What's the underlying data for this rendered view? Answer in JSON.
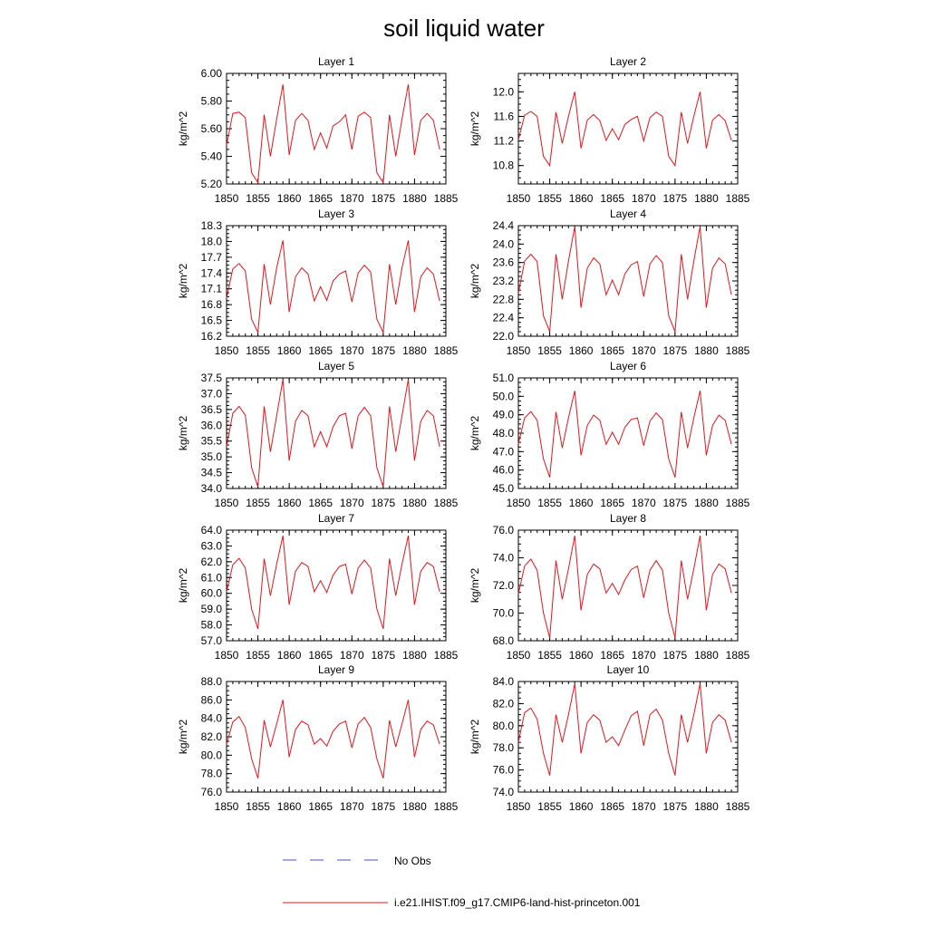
{
  "figure_title": "soil liquid water",
  "colors": {
    "model": "#e8141b",
    "obs": "#4a4fc0",
    "axis": "#000000"
  },
  "legend": {
    "obs_label": "No Obs",
    "model_label": "i.e21.IHIST.f09_g17.CMIP6-land-hist-princeton.001"
  },
  "chart_data": [
    {
      "type": "line",
      "title": "Layer 1",
      "ylabel": "kg/m^2",
      "xlim": [
        1850,
        1885
      ],
      "ylim": [
        5.2,
        6.0
      ],
      "x_ticks": [
        "1850",
        "1855",
        "1860",
        "1865",
        "1870",
        "1875",
        "1880",
        "1885"
      ],
      "y_ticks": [
        "5.20",
        "5.40",
        "5.60",
        "5.80",
        "6.00"
      ],
      "series": [
        {
          "x": [
            1850,
            1851,
            1852,
            1853,
            1854,
            1855,
            1856,
            1857,
            1858,
            1859,
            1860,
            1861,
            1862,
            1863,
            1864,
            1865,
            1866,
            1867,
            1868,
            1869,
            1870,
            1871,
            1872,
            1873,
            1874,
            1875,
            1876,
            1877,
            1878,
            1879,
            1880,
            1881,
            1882,
            1883,
            1884
          ],
          "y": [
            5.48,
            5.71,
            5.72,
            5.68,
            5.28,
            5.21,
            5.7,
            5.4,
            5.67,
            5.92,
            5.41,
            5.66,
            5.71,
            5.66,
            5.45,
            5.57,
            5.46,
            5.62,
            5.65,
            5.7,
            5.45,
            5.69,
            5.72,
            5.68,
            5.28,
            5.21,
            5.7,
            5.4,
            5.67,
            5.92,
            5.41,
            5.66,
            5.71,
            5.66,
            5.45
          ]
        }
      ]
    },
    {
      "type": "line",
      "title": "Layer 2",
      "ylabel": "kg/m^2",
      "xlim": [
        1850,
        1885
      ],
      "ylim": [
        10.5,
        12.3
      ],
      "x_ticks": [
        "1850",
        "1855",
        "1860",
        "1865",
        "1870",
        "1875",
        "1880",
        "1885"
      ],
      "y_ticks": [
        "10.8",
        "11.2",
        "11.6",
        "12.0"
      ],
      "series": [
        {
          "x": [
            1850,
            1851,
            1852,
            1853,
            1854,
            1855,
            1856,
            1857,
            1858,
            1859,
            1860,
            1861,
            1862,
            1863,
            1864,
            1865,
            1866,
            1867,
            1868,
            1869,
            1870,
            1871,
            1872,
            1873,
            1874,
            1875,
            1876,
            1877,
            1878,
            1879,
            1880,
            1881,
            1882,
            1883,
            1884
          ],
          "y": [
            11.22,
            11.62,
            11.68,
            11.6,
            10.95,
            10.8,
            11.67,
            11.16,
            11.6,
            12.0,
            11.08,
            11.54,
            11.63,
            11.53,
            11.21,
            11.4,
            11.22,
            11.47,
            11.55,
            11.6,
            11.2,
            11.58,
            11.67,
            11.6,
            10.95,
            10.8,
            11.67,
            11.16,
            11.6,
            12.0,
            11.08,
            11.54,
            11.63,
            11.53,
            11.21
          ]
        }
      ]
    },
    {
      "type": "line",
      "title": "Layer 3",
      "ylabel": "kg/m^2",
      "xlim": [
        1850,
        1885
      ],
      "ylim": [
        16.2,
        18.3
      ],
      "x_ticks": [
        "1850",
        "1855",
        "1860",
        "1865",
        "1870",
        "1875",
        "1880",
        "1885"
      ],
      "y_ticks": [
        "16.2",
        "16.5",
        "16.8",
        "17.1",
        "17.4",
        "17.7",
        "18.0",
        "18.3"
      ],
      "series": [
        {
          "x": [
            1850,
            1851,
            1852,
            1853,
            1854,
            1855,
            1856,
            1857,
            1858,
            1859,
            1860,
            1861,
            1862,
            1863,
            1864,
            1865,
            1866,
            1867,
            1868,
            1869,
            1870,
            1871,
            1872,
            1873,
            1874,
            1875,
            1876,
            1877,
            1878,
            1879,
            1880,
            1881,
            1882,
            1883,
            1884
          ],
          "y": [
            16.92,
            17.48,
            17.58,
            17.44,
            16.52,
            16.27,
            17.57,
            16.8,
            17.5,
            18.02,
            16.66,
            17.33,
            17.5,
            17.38,
            16.87,
            17.14,
            16.88,
            17.25,
            17.38,
            17.44,
            16.85,
            17.4,
            17.55,
            17.42,
            16.52,
            16.27,
            17.57,
            16.8,
            17.5,
            18.02,
            16.66,
            17.33,
            17.5,
            17.38,
            16.87
          ]
        }
      ]
    },
    {
      "type": "line",
      "title": "Layer 4",
      "ylabel": "kg/m^2",
      "xlim": [
        1850,
        1885
      ],
      "ylim": [
        22.0,
        24.4
      ],
      "x_ticks": [
        "1850",
        "1855",
        "1860",
        "1865",
        "1870",
        "1875",
        "1880",
        "1885"
      ],
      "y_ticks": [
        "22.0",
        "22.4",
        "22.8",
        "23.2",
        "23.6",
        "24.0",
        "24.4"
      ],
      "series": [
        {
          "x": [
            1850,
            1851,
            1852,
            1853,
            1854,
            1855,
            1856,
            1857,
            1858,
            1859,
            1860,
            1861,
            1862,
            1863,
            1864,
            1865,
            1866,
            1867,
            1868,
            1869,
            1870,
            1871,
            1872,
            1873,
            1874,
            1875,
            1876,
            1877,
            1878,
            1879,
            1880,
            1881,
            1882,
            1883,
            1884
          ],
          "y": [
            22.93,
            23.63,
            23.78,
            23.62,
            22.44,
            22.1,
            23.78,
            22.8,
            23.63,
            24.38,
            22.62,
            23.48,
            23.7,
            23.57,
            22.9,
            23.22,
            22.9,
            23.35,
            23.55,
            23.62,
            22.86,
            23.57,
            23.75,
            23.6,
            22.44,
            22.1,
            23.78,
            22.8,
            23.63,
            24.38,
            22.62,
            23.48,
            23.7,
            23.57,
            22.9
          ]
        }
      ]
    },
    {
      "type": "line",
      "title": "Layer 5",
      "ylabel": "kg/m^2",
      "xlim": [
        1850,
        1885
      ],
      "ylim": [
        34.0,
        37.5
      ],
      "x_ticks": [
        "1850",
        "1855",
        "1860",
        "1865",
        "1870",
        "1875",
        "1880",
        "1885"
      ],
      "y_ticks": [
        "34.0",
        "34.5",
        "35.0",
        "35.5",
        "36.0",
        "36.5",
        "37.0",
        "37.5"
      ],
      "series": [
        {
          "x": [
            1850,
            1851,
            1852,
            1853,
            1854,
            1855,
            1856,
            1857,
            1858,
            1859,
            1860,
            1861,
            1862,
            1863,
            1864,
            1865,
            1866,
            1867,
            1868,
            1869,
            1870,
            1871,
            1872,
            1873,
            1874,
            1875,
            1876,
            1877,
            1878,
            1879,
            1880,
            1881,
            1882,
            1883,
            1884
          ],
          "y": [
            35.32,
            36.38,
            36.6,
            36.32,
            34.65,
            34.05,
            36.6,
            35.16,
            36.3,
            37.45,
            34.88,
            36.13,
            36.47,
            36.3,
            35.32,
            35.8,
            35.32,
            35.95,
            36.3,
            36.38,
            35.26,
            36.3,
            36.57,
            36.3,
            34.65,
            34.05,
            36.6,
            35.16,
            36.3,
            37.45,
            34.88,
            36.13,
            36.47,
            36.3,
            35.32
          ]
        }
      ]
    },
    {
      "type": "line",
      "title": "Layer 6",
      "ylabel": "kg/m^2",
      "xlim": [
        1850,
        1885
      ],
      "ylim": [
        45.0,
        51.0
      ],
      "x_ticks": [
        "1850",
        "1855",
        "1860",
        "1865",
        "1870",
        "1875",
        "1880",
        "1885"
      ],
      "y_ticks": [
        "45.0",
        "46.0",
        "47.0",
        "48.0",
        "49.0",
        "50.0",
        "51.0"
      ],
      "series": [
        {
          "x": [
            1850,
            1851,
            1852,
            1853,
            1854,
            1855,
            1856,
            1857,
            1858,
            1859,
            1860,
            1861,
            1862,
            1863,
            1864,
            1865,
            1866,
            1867,
            1868,
            1869,
            1870,
            1871,
            1872,
            1873,
            1874,
            1875,
            1876,
            1877,
            1878,
            1879,
            1880,
            1881,
            1882,
            1883,
            1884
          ],
          "y": [
            47.42,
            48.83,
            49.17,
            48.7,
            46.6,
            45.6,
            49.15,
            47.2,
            48.83,
            50.3,
            46.8,
            48.43,
            48.98,
            48.7,
            47.4,
            48.05,
            47.4,
            48.32,
            48.75,
            48.83,
            47.32,
            48.66,
            49.1,
            48.74,
            46.6,
            45.6,
            49.15,
            47.2,
            48.83,
            50.3,
            46.8,
            48.43,
            48.98,
            48.7,
            47.4
          ]
        }
      ]
    },
    {
      "type": "line",
      "title": "Layer 7",
      "ylabel": "kg/m^2",
      "xlim": [
        1850,
        1885
      ],
      "ylim": [
        57.0,
        64.0
      ],
      "x_ticks": [
        "1850",
        "1855",
        "1860",
        "1865",
        "1870",
        "1875",
        "1880",
        "1885"
      ],
      "y_ticks": [
        "57.0",
        "58.0",
        "59.0",
        "60.0",
        "61.0",
        "62.0",
        "63.0",
        "64.0"
      ],
      "series": [
        {
          "x": [
            1850,
            1851,
            1852,
            1853,
            1854,
            1855,
            1856,
            1857,
            1858,
            1859,
            1860,
            1861,
            1862,
            1863,
            1864,
            1865,
            1866,
            1867,
            1868,
            1869,
            1870,
            1871,
            1872,
            1873,
            1874,
            1875,
            1876,
            1877,
            1878,
            1879,
            1880,
            1881,
            1882,
            1883,
            1884
          ],
          "y": [
            60.1,
            61.8,
            62.22,
            61.6,
            59.0,
            57.75,
            62.2,
            59.85,
            61.85,
            63.65,
            59.28,
            61.4,
            61.95,
            61.7,
            60.1,
            60.8,
            60.05,
            61.15,
            61.7,
            61.85,
            59.95,
            61.6,
            62.1,
            61.6,
            59.0,
            57.75,
            62.2,
            59.85,
            61.85,
            63.65,
            59.28,
            61.4,
            61.95,
            61.7,
            60.1
          ]
        }
      ]
    },
    {
      "type": "line",
      "title": "Layer 8",
      "ylabel": "kg/m^2",
      "xlim": [
        1850,
        1885
      ],
      "ylim": [
        68.0,
        76.0
      ],
      "x_ticks": [
        "1850",
        "1855",
        "1860",
        "1865",
        "1870",
        "1875",
        "1880",
        "1885"
      ],
      "y_ticks": [
        "68.0",
        "70.0",
        "72.0",
        "74.0",
        "76.0"
      ],
      "series": [
        {
          "x": [
            1850,
            1851,
            1852,
            1853,
            1854,
            1855,
            1856,
            1857,
            1858,
            1859,
            1860,
            1861,
            1862,
            1863,
            1864,
            1865,
            1866,
            1867,
            1868,
            1869,
            1870,
            1871,
            1872,
            1873,
            1874,
            1875,
            1876,
            1877,
            1878,
            1879,
            1880,
            1881,
            1882,
            1883,
            1884
          ],
          "y": [
            71.4,
            73.4,
            73.9,
            73.1,
            70.0,
            68.2,
            73.8,
            71.0,
            73.2,
            75.6,
            70.2,
            72.8,
            73.55,
            73.2,
            71.45,
            72.15,
            71.35,
            72.4,
            73.15,
            73.4,
            71.1,
            73.1,
            73.8,
            73.1,
            70.0,
            68.2,
            73.8,
            71.0,
            73.2,
            75.6,
            70.2,
            72.8,
            73.55,
            73.2,
            71.45
          ]
        }
      ]
    },
    {
      "type": "line",
      "title": "Layer 9",
      "ylabel": "kg/m^2",
      "xlim": [
        1850,
        1885
      ],
      "ylim": [
        76.0,
        88.0
      ],
      "x_ticks": [
        "1850",
        "1855",
        "1860",
        "1865",
        "1870",
        "1875",
        "1880",
        "1885"
      ],
      "y_ticks": [
        "76.0",
        "78.0",
        "80.0",
        "82.0",
        "84.0",
        "86.0",
        "88.0"
      ],
      "series": [
        {
          "x": [
            1850,
            1851,
            1852,
            1853,
            1854,
            1855,
            1856,
            1857,
            1858,
            1859,
            1860,
            1861,
            1862,
            1863,
            1864,
            1865,
            1866,
            1867,
            1868,
            1869,
            1870,
            1871,
            1872,
            1873,
            1874,
            1875,
            1876,
            1877,
            1878,
            1879,
            1880,
            1881,
            1882,
            1883,
            1884
          ],
          "y": [
            81.2,
            83.6,
            84.2,
            83.0,
            79.6,
            77.5,
            83.8,
            80.9,
            83.4,
            86.0,
            79.8,
            82.8,
            83.7,
            83.3,
            81.2,
            81.8,
            81.0,
            82.6,
            83.4,
            83.7,
            80.8,
            83.4,
            84.1,
            83.0,
            79.6,
            77.5,
            83.8,
            80.9,
            83.4,
            86.0,
            79.8,
            82.8,
            83.7,
            83.3,
            81.2
          ]
        }
      ]
    },
    {
      "type": "line",
      "title": "Layer 10",
      "ylabel": "kg/m^2",
      "xlim": [
        1850,
        1885
      ],
      "ylim": [
        74.0,
        84.0
      ],
      "x_ticks": [
        "1850",
        "1855",
        "1860",
        "1865",
        "1870",
        "1875",
        "1880",
        "1885"
      ],
      "y_ticks": [
        "74.0",
        "76.0",
        "78.0",
        "80.0",
        "82.0",
        "84.0"
      ],
      "series": [
        {
          "x": [
            1850,
            1851,
            1852,
            1853,
            1854,
            1855,
            1856,
            1857,
            1858,
            1859,
            1860,
            1861,
            1862,
            1863,
            1864,
            1865,
            1866,
            1867,
            1868,
            1869,
            1870,
            1871,
            1872,
            1873,
            1874,
            1875,
            1876,
            1877,
            1878,
            1879,
            1880,
            1881,
            1882,
            1883,
            1884
          ],
          "y": [
            78.5,
            81.2,
            81.6,
            80.6,
            77.5,
            75.5,
            81.0,
            78.5,
            81.0,
            83.8,
            77.5,
            80.3,
            81.0,
            80.5,
            78.5,
            79.0,
            78.2,
            79.6,
            80.9,
            81.3,
            78.2,
            81.0,
            81.5,
            80.5,
            77.5,
            75.5,
            81.0,
            78.5,
            81.0,
            83.8,
            77.5,
            80.3,
            81.0,
            80.5,
            78.5
          ]
        }
      ]
    }
  ]
}
